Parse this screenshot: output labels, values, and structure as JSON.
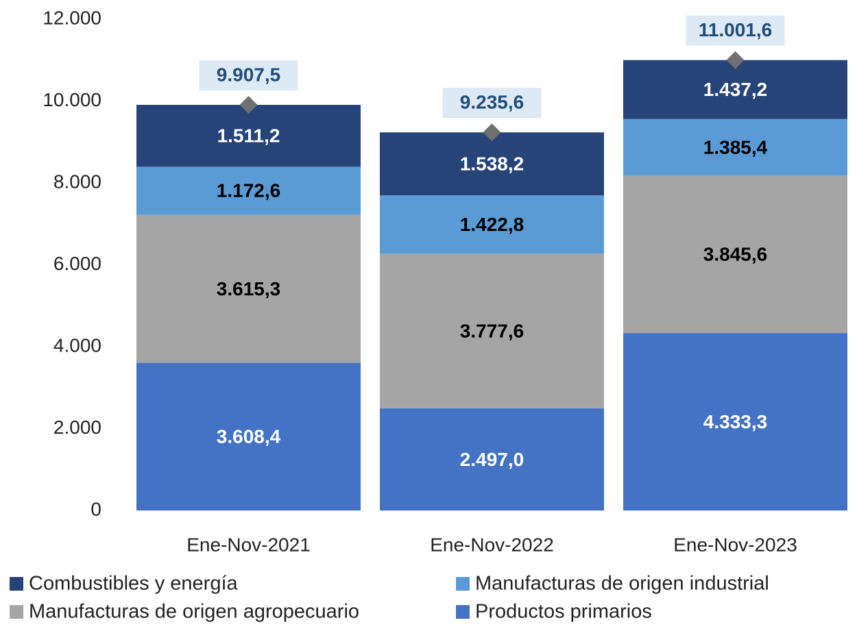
{
  "chart_data": {
    "type": "stacked_bar",
    "categories": [
      "Ene-Nov-2021",
      "Ene-Nov-2022",
      "Ene-Nov-2023"
    ],
    "series": [
      {
        "name": "Combustibles y energía",
        "color": "#264478",
        "label_color": "#ffffff",
        "values": [
          1511.2,
          1538.2,
          1437.2
        ],
        "value_labels": [
          "1.511,2",
          "1.538,2",
          "1.437,2"
        ]
      },
      {
        "name": "Manufacturas de origen industrial",
        "color": "#5b9bd5",
        "label_color": "#000000",
        "values": [
          1172.6,
          1422.8,
          1385.4
        ],
        "value_labels": [
          "1.172,6",
          "1.422,8",
          "1.385,4"
        ]
      },
      {
        "name": "Manufacturas de origen agropecuario",
        "color": "#a5a5a5",
        "label_color": "#000000",
        "values": [
          3615.3,
          3777.6,
          3845.6
        ],
        "value_labels": [
          "3.615,3",
          "3.777,6",
          "3.845,6"
        ]
      },
      {
        "name": "Productos primarios",
        "color": "#4472c4",
        "label_color": "#ffffff",
        "values": [
          3608.4,
          2497.0,
          4333.3
        ],
        "value_labels": [
          "3.608,4",
          "2.497,0",
          "4.333,3"
        ]
      }
    ],
    "totals": {
      "color": "#707070",
      "label_color": "#1f4e79",
      "label_background": "#dde9f5",
      "values": [
        9907.5,
        9235.6,
        11001.6
      ],
      "value_labels": [
        "9.907,5",
        "9.235,6",
        "11.001,6"
      ]
    },
    "ylim": [
      0,
      12000
    ],
    "yticks": [
      0,
      {
        "value": 2000,
        "label": "2.000"
      },
      {
        "value": 4000,
        "label": "4.000"
      },
      {
        "value": 6000,
        "label": "6.000"
      },
      {
        "value": 8000,
        "label": "8.000"
      },
      {
        "value": 10000,
        "label": "10.000"
      },
      {
        "value": 12000,
        "label": "12.000"
      }
    ],
    "grid": false,
    "legend": "bottom"
  }
}
